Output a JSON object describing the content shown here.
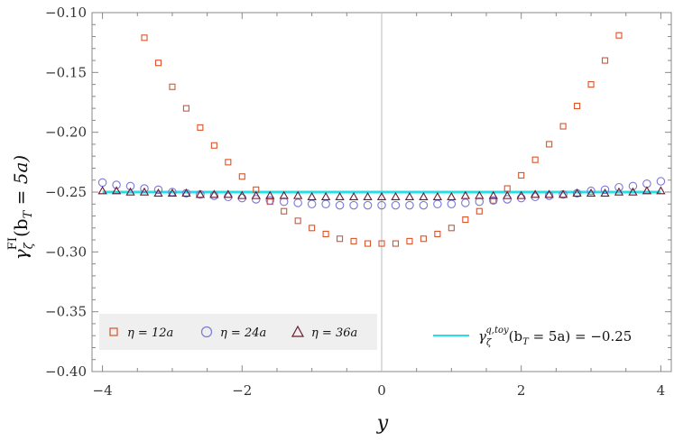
{
  "chart_data": {
    "type": "scatter",
    "xlabel": "y",
    "ylabel": {
      "base": "γ",
      "sup": "FI",
      "sub": "ζ",
      "args": "(b",
      "args_sub": "T",
      "args_rest": " = 5a)"
    },
    "xlim": [
      -4.15,
      4.15
    ],
    "ylim": [
      -0.4,
      -0.1
    ],
    "x_ticks": [
      "−4",
      "−2",
      "0",
      "2",
      "4"
    ],
    "x_tick_values": [
      -4,
      -2,
      0,
      2,
      4
    ],
    "y_ticks": [
      "−0.40",
      "−0.35",
      "−0.30",
      "−0.25",
      "−0.20",
      "−0.15",
      "−0.10"
    ],
    "y_tick_values": [
      -0.4,
      -0.35,
      -0.3,
      -0.25,
      -0.2,
      -0.15,
      -0.1
    ],
    "vertical_line_x": 0,
    "series": [
      {
        "name": "η = 12a",
        "marker": "square",
        "color": "#d9532b",
        "points": [
          [
            -3.4,
            -0.121
          ],
          [
            -3.2,
            -0.142
          ],
          [
            -3.0,
            -0.162
          ],
          [
            -2.8,
            -0.18
          ],
          [
            -2.6,
            -0.196
          ],
          [
            -2.4,
            -0.211
          ],
          [
            -2.2,
            -0.225
          ],
          [
            -2.0,
            -0.237
          ],
          [
            -1.8,
            -0.248
          ],
          [
            -1.6,
            -0.258
          ],
          [
            -1.4,
            -0.266
          ],
          [
            -1.2,
            -0.274
          ],
          [
            -1.0,
            -0.28
          ],
          [
            -0.8,
            -0.285
          ],
          [
            -0.6,
            -0.289
          ],
          [
            -0.4,
            -0.291
          ],
          [
            -0.2,
            -0.293
          ],
          [
            0.0,
            -0.293
          ],
          [
            0.2,
            -0.293
          ],
          [
            0.4,
            -0.291
          ],
          [
            0.6,
            -0.289
          ],
          [
            0.8,
            -0.285
          ],
          [
            1.0,
            -0.28
          ],
          [
            1.2,
            -0.273
          ],
          [
            1.4,
            -0.266
          ],
          [
            1.6,
            -0.257
          ],
          [
            1.8,
            -0.247
          ],
          [
            2.0,
            -0.236
          ],
          [
            2.2,
            -0.223
          ],
          [
            2.4,
            -0.21
          ],
          [
            2.6,
            -0.195
          ],
          [
            2.8,
            -0.178
          ],
          [
            3.0,
            -0.16
          ],
          [
            3.2,
            -0.14
          ],
          [
            3.4,
            -0.119
          ]
        ]
      },
      {
        "name": "η = 24a",
        "marker": "circle",
        "color": "#7b78d6",
        "points": [
          [
            -4.0,
            -0.242
          ],
          [
            -3.8,
            -0.244
          ],
          [
            -3.6,
            -0.245
          ],
          [
            -3.4,
            -0.247
          ],
          [
            -3.2,
            -0.248
          ],
          [
            -3.0,
            -0.25
          ],
          [
            -2.8,
            -0.251
          ],
          [
            -2.6,
            -0.252
          ],
          [
            -2.4,
            -0.253
          ],
          [
            -2.2,
            -0.254
          ],
          [
            -2.0,
            -0.255
          ],
          [
            -1.8,
            -0.256
          ],
          [
            -1.6,
            -0.257
          ],
          [
            -1.4,
            -0.258
          ],
          [
            -1.2,
            -0.259
          ],
          [
            -1.0,
            -0.26
          ],
          [
            -0.8,
            -0.26
          ],
          [
            -0.6,
            -0.261
          ],
          [
            -0.4,
            -0.261
          ],
          [
            -0.2,
            -0.261
          ],
          [
            0.0,
            -0.261
          ],
          [
            0.2,
            -0.261
          ],
          [
            0.4,
            -0.261
          ],
          [
            0.6,
            -0.261
          ],
          [
            0.8,
            -0.26
          ],
          [
            1.0,
            -0.26
          ],
          [
            1.2,
            -0.259
          ],
          [
            1.4,
            -0.258
          ],
          [
            1.6,
            -0.257
          ],
          [
            1.8,
            -0.256
          ],
          [
            2.0,
            -0.255
          ],
          [
            2.2,
            -0.254
          ],
          [
            2.4,
            -0.253
          ],
          [
            2.6,
            -0.252
          ],
          [
            2.8,
            -0.251
          ],
          [
            3.0,
            -0.249
          ],
          [
            3.2,
            -0.248
          ],
          [
            3.4,
            -0.246
          ],
          [
            3.6,
            -0.245
          ],
          [
            3.8,
            -0.243
          ],
          [
            4.0,
            -0.241
          ]
        ]
      },
      {
        "name": "η = 36a",
        "marker": "triangle",
        "color": "#6b1a2e",
        "points": [
          [
            -4.0,
            -0.249
          ],
          [
            -3.8,
            -0.249
          ],
          [
            -3.6,
            -0.25
          ],
          [
            -3.4,
            -0.25
          ],
          [
            -3.2,
            -0.251
          ],
          [
            -3.0,
            -0.251
          ],
          [
            -2.8,
            -0.251
          ],
          [
            -2.6,
            -0.252
          ],
          [
            -2.4,
            -0.252
          ],
          [
            -2.2,
            -0.252
          ],
          [
            -2.0,
            -0.253
          ],
          [
            -1.8,
            -0.253
          ],
          [
            -1.6,
            -0.253
          ],
          [
            -1.4,
            -0.253
          ],
          [
            -1.2,
            -0.253
          ],
          [
            -1.0,
            -0.254
          ],
          [
            -0.8,
            -0.254
          ],
          [
            -0.6,
            -0.254
          ],
          [
            -0.4,
            -0.254
          ],
          [
            -0.2,
            -0.254
          ],
          [
            0.0,
            -0.254
          ],
          [
            0.2,
            -0.254
          ],
          [
            0.4,
            -0.254
          ],
          [
            0.6,
            -0.254
          ],
          [
            0.8,
            -0.254
          ],
          [
            1.0,
            -0.254
          ],
          [
            1.2,
            -0.253
          ],
          [
            1.4,
            -0.253
          ],
          [
            1.6,
            -0.253
          ],
          [
            1.8,
            -0.253
          ],
          [
            2.0,
            -0.253
          ],
          [
            2.2,
            -0.252
          ],
          [
            2.4,
            -0.252
          ],
          [
            2.6,
            -0.252
          ],
          [
            2.8,
            -0.251
          ],
          [
            3.0,
            -0.251
          ],
          [
            3.2,
            -0.251
          ],
          [
            3.4,
            -0.25
          ],
          [
            3.6,
            -0.25
          ],
          [
            3.8,
            -0.249
          ],
          [
            4.0,
            -0.249
          ]
        ]
      }
    ],
    "reference_line": {
      "name": "γ^{q,toy}_ζ(b_T = 5a) = −0.25",
      "label": {
        "base": "γ",
        "sup": "q,toy",
        "sub": "ζ",
        "args": "(b",
        "args_sub": "T",
        "args_rest": " = 5a) = −0.25"
      },
      "value": -0.25,
      "color": "#22e0e6"
    },
    "legend_position": "bottom-left",
    "grid": false
  }
}
